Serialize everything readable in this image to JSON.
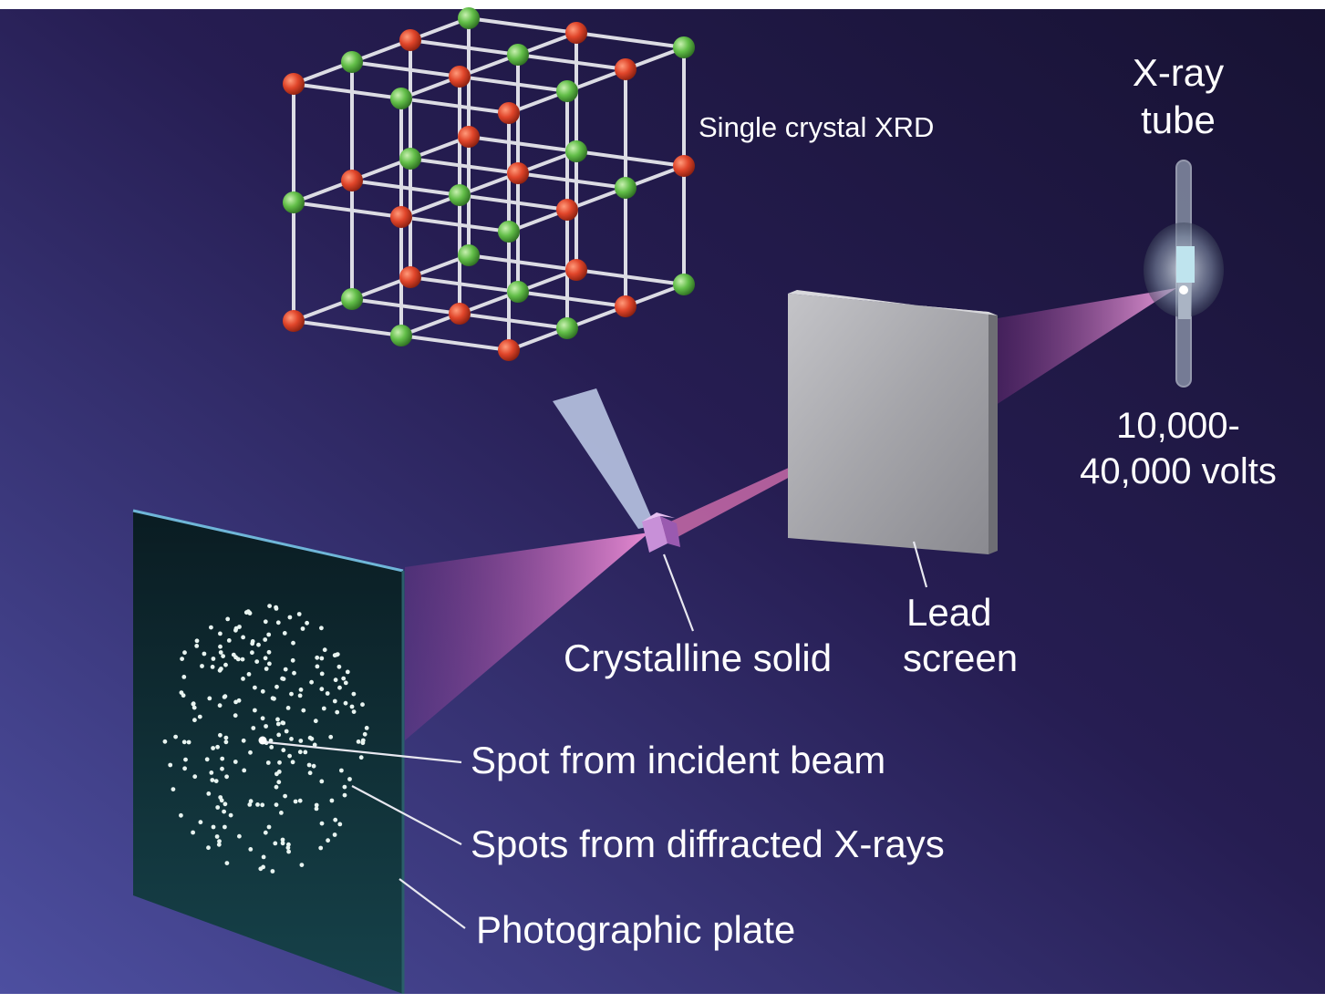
{
  "labels": {
    "title": "Single crystal XRD",
    "xray_tube_line1": "X-ray",
    "xray_tube_line2": "tube",
    "voltage_line1": "10,000-",
    "voltage_line2": "40,000 volts",
    "lead_screen_line1": "Lead",
    "lead_screen_line2": "screen",
    "crystalline_solid": "Crystalline solid",
    "spot_incident": "Spot from incident beam",
    "spots_diffracted": "Spots from diffracted X-rays",
    "photographic_plate": "Photographic plate"
  },
  "colors": {
    "background_top": "#231a4a",
    "background_bottom": "#4a4a9a",
    "beam": "#e070c0",
    "atom_red": "#e04a2a",
    "atom_green": "#5fbf4a",
    "lattice": "#dcdce4",
    "lead_screen": "#a8a8ac",
    "plate": "#0d2c32",
    "spot": "#e8f4f0"
  },
  "icons": [
    "crystal-lattice-icon",
    "xray-tube-icon",
    "lead-screen-icon",
    "photographic-plate-icon",
    "crystal-icon"
  ]
}
